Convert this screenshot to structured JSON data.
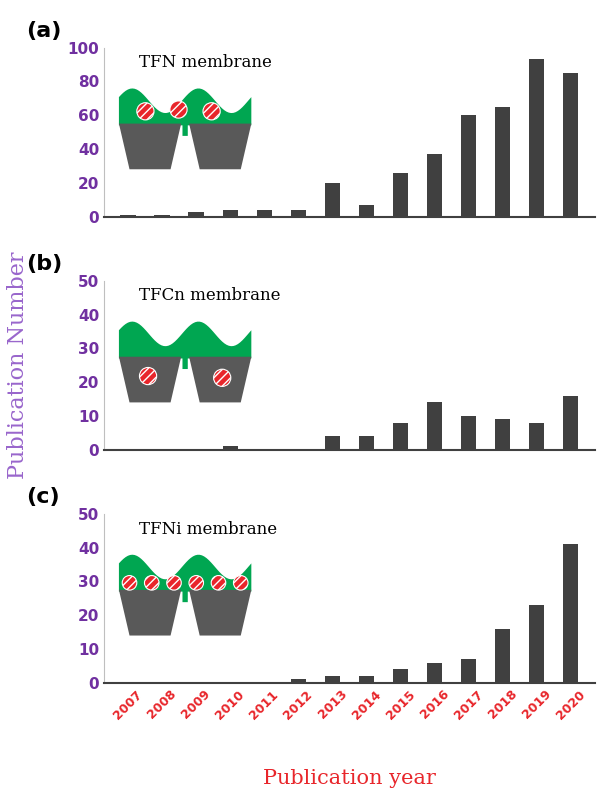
{
  "y_label": "Publication Number",
  "x_label": "Publication year",
  "chart_data": [
    {
      "type": "bar",
      "panel": "(a)",
      "title": "TFN membrane",
      "categories": [
        "2007",
        "2008",
        "2009",
        "2010",
        "2011",
        "2012",
        "2013",
        "2014",
        "2015",
        "2016",
        "2017",
        "2018",
        "2019",
        "2020"
      ],
      "values": [
        1,
        1,
        3,
        4,
        4,
        4,
        20,
        7,
        26,
        37,
        60,
        65,
        93,
        85
      ],
      "color": "#404040",
      "ylim": [
        0,
        100
      ],
      "yticks": [
        0,
        20,
        40,
        60,
        80,
        100
      ],
      "tick_labels": "y"
    },
    {
      "type": "bar",
      "panel": "(b)",
      "title": "TFCn membrane",
      "categories": [
        "2007",
        "2008",
        "2009",
        "2010",
        "2011",
        "2012",
        "2013",
        "2014",
        "2015",
        "2016",
        "2017",
        "2018",
        "2019",
        "2020"
      ],
      "values": [
        0,
        0,
        0,
        1,
        0,
        0,
        4,
        4,
        8,
        14,
        10,
        9,
        8,
        16
      ],
      "color": "#404040",
      "ylim": [
        0,
        50
      ],
      "yticks": [
        0,
        10,
        20,
        30,
        40,
        50
      ],
      "tick_labels": "y"
    },
    {
      "type": "bar",
      "panel": "(c)",
      "title": "TFNi membrane",
      "categories": [
        "2007",
        "2008",
        "2009",
        "2010",
        "2011",
        "2012",
        "2013",
        "2014",
        "2015",
        "2016",
        "2017",
        "2018",
        "2019",
        "2020"
      ],
      "values": [
        0,
        0,
        0,
        0,
        0,
        1,
        2,
        2,
        4,
        6,
        7,
        16,
        23,
        41
      ],
      "color": "#404040",
      "ylim": [
        0,
        50
      ],
      "yticks": [
        0,
        10,
        20,
        30,
        40,
        50
      ],
      "tick_labels": true
    }
  ]
}
